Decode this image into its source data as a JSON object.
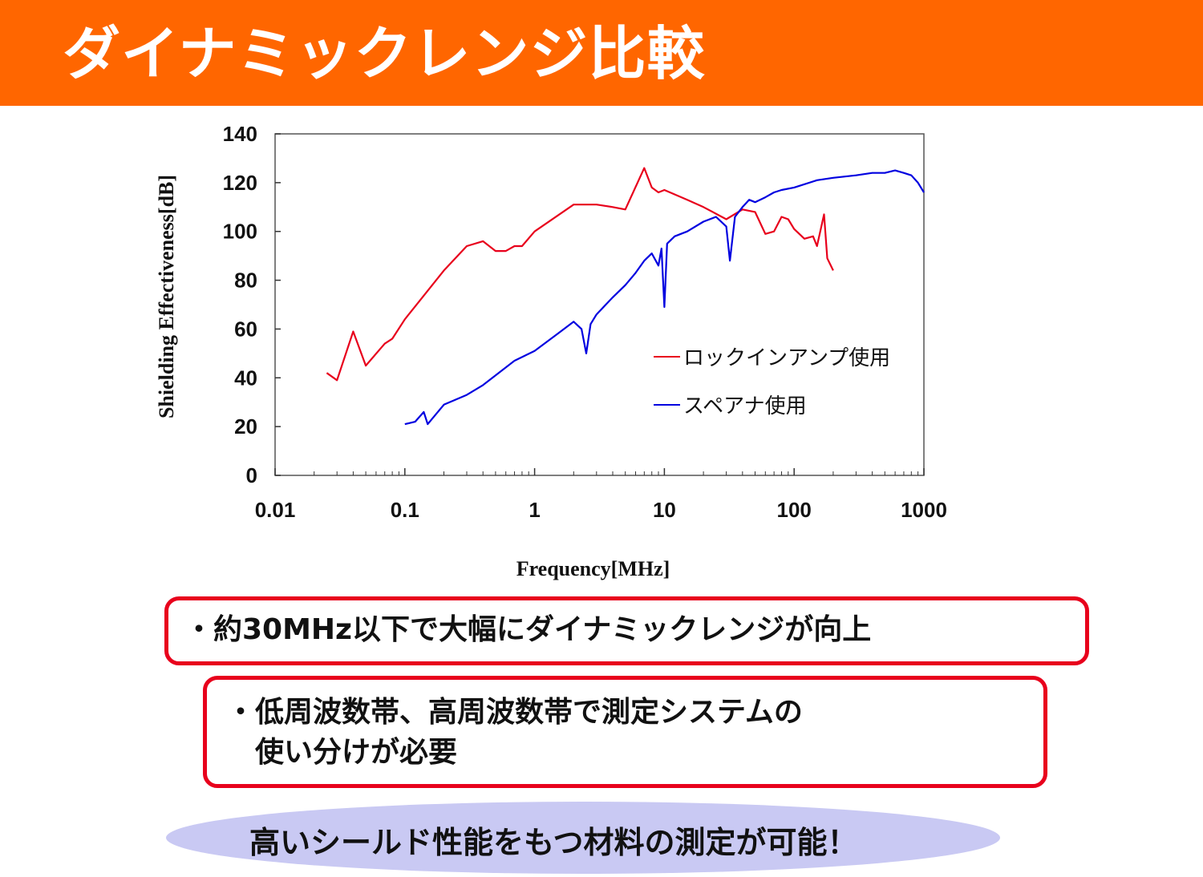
{
  "slide": {
    "title": "ダイナミックレンジ比較"
  },
  "notes": {
    "line1": "・約30MHz以下で大幅にダイナミックレンジが向上",
    "line2a": "・低周波数帯、高周波数帯で測定システムの",
    "line2b": "　使い分けが必要"
  },
  "callout": {
    "text": "高いシールド性能をもつ材料の測定が可能！"
  },
  "colors": {
    "header": "#ff6600",
    "lockin_series": "#e8001c",
    "specan_series": "#0000e0",
    "box_border": "#e8001c",
    "callout_fill": "#c9c9f3"
  },
  "chart_data": {
    "type": "line",
    "title": "",
    "xlabel": "Frequency[MHz]",
    "ylabel": "Shielding Effectiveness[dB]",
    "xscale": "log",
    "xlim": [
      0.01,
      1000
    ],
    "ylim": [
      0,
      140
    ],
    "xticks": [
      "0.01",
      "0.1",
      "1",
      "10",
      "100",
      "1000"
    ],
    "yticks": [
      "0",
      "20",
      "40",
      "60",
      "80",
      "100",
      "120",
      "140"
    ],
    "legend_position": "inside-right",
    "series": [
      {
        "name": "ロックインアンプ使用",
        "color": "#e8001c",
        "x": [
          0.025,
          0.03,
          0.04,
          0.05,
          0.07,
          0.08,
          0.1,
          0.2,
          0.3,
          0.4,
          0.5,
          0.6,
          0.7,
          0.8,
          1,
          2,
          3,
          4,
          5,
          7,
          8,
          9,
          10,
          15,
          20,
          30,
          40,
          50,
          60,
          70,
          80,
          90,
          100,
          120,
          140,
          150,
          170,
          180,
          200
        ],
        "y": [
          42,
          39,
          59,
          45,
          54,
          56,
          64,
          84,
          94,
          96,
          92,
          92,
          94,
          94,
          100,
          111,
          111,
          110,
          109,
          126,
          118,
          116,
          117,
          113,
          110,
          105,
          109,
          108,
          99,
          100,
          106,
          105,
          101,
          97,
          98,
          94,
          107,
          89,
          84
        ]
      },
      {
        "name": "スペアナ使用",
        "color": "#0000e0",
        "x": [
          0.1,
          0.12,
          0.14,
          0.15,
          0.2,
          0.3,
          0.4,
          0.5,
          0.7,
          1,
          1.5,
          2,
          2.3,
          2.5,
          2.7,
          3,
          4,
          5,
          6,
          7,
          8,
          9,
          9.5,
          10,
          10.5,
          12,
          15,
          20,
          25,
          30,
          32,
          35,
          40,
          45,
          50,
          60,
          70,
          80,
          100,
          150,
          200,
          300,
          400,
          500,
          600,
          700,
          800,
          900,
          1000
        ],
        "y": [
          21,
          22,
          26,
          21,
          29,
          33,
          37,
          41,
          47,
          51,
          58,
          63,
          60,
          50,
          62,
          66,
          73,
          78,
          83,
          88,
          91,
          86,
          93,
          69,
          95,
          98,
          100,
          104,
          106,
          102,
          88,
          106,
          110,
          113,
          112,
          114,
          116,
          117,
          118,
          121,
          122,
          123,
          124,
          124,
          125,
          124,
          123,
          120,
          116
        ]
      }
    ]
  }
}
